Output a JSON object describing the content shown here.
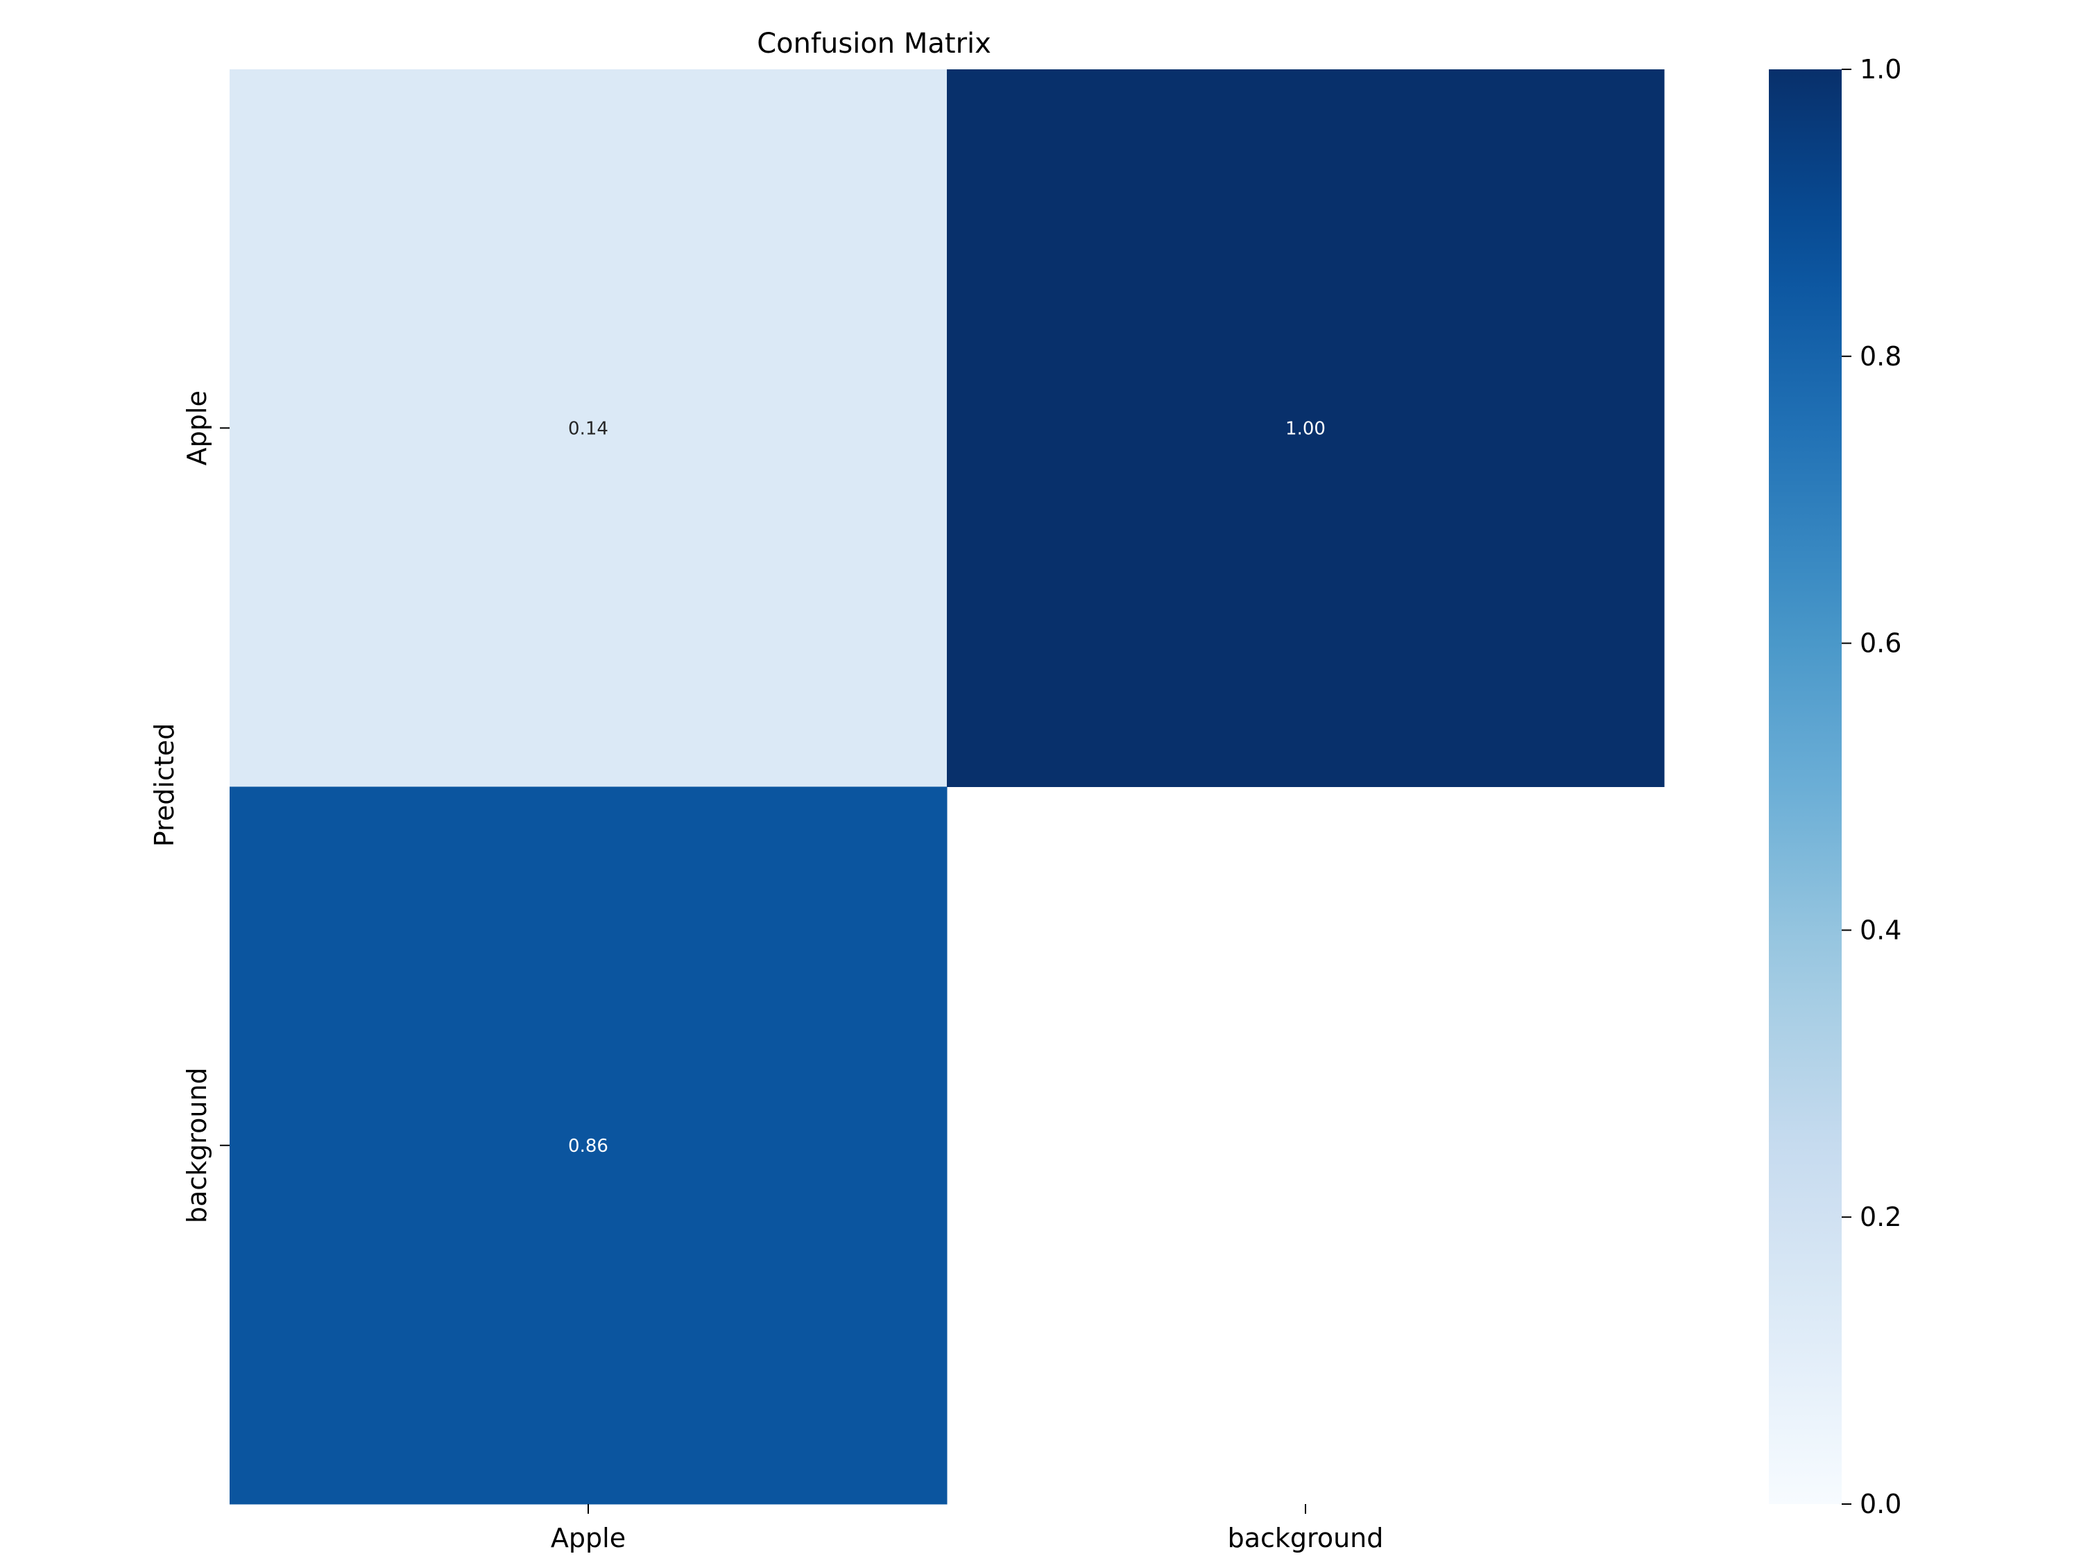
{
  "chart_data": {
    "type": "heatmap",
    "title": "Confusion Matrix",
    "xlabel": "",
    "ylabel": "Predicted",
    "x_categories": [
      "Apple",
      "background"
    ],
    "y_categories": [
      "Apple",
      "background"
    ],
    "values": [
      [
        0.14,
        1.0
      ],
      [
        0.86,
        null
      ]
    ],
    "value_format": "0.00",
    "colormap": "Blues",
    "colorbar": {
      "range": [
        0.0,
        1.0
      ],
      "ticks": [
        0.0,
        0.2,
        0.4,
        0.6,
        0.8,
        1.0
      ],
      "tick_labels": [
        "0.0",
        "0.2",
        "0.4",
        "0.6",
        "0.8",
        "1.0"
      ]
    },
    "colors": {
      "text_dark": "#262626",
      "text_light": "#ffffff",
      "axis": "#000000"
    }
  }
}
